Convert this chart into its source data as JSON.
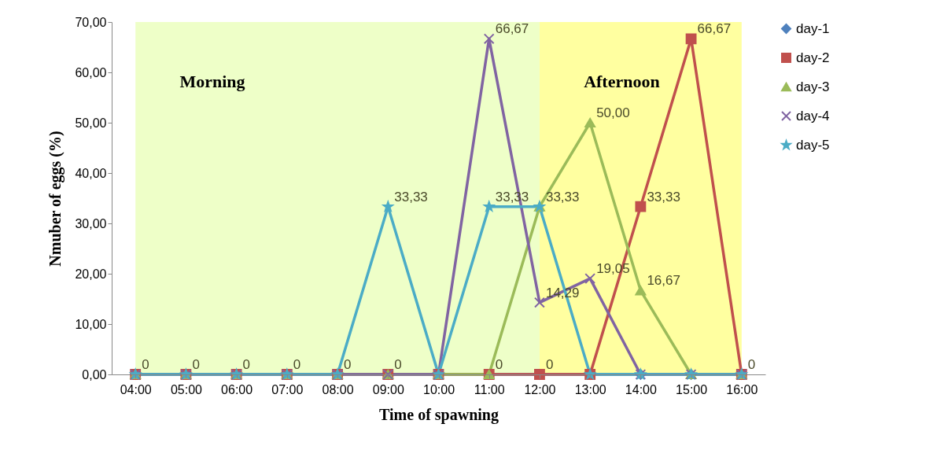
{
  "chart_data": {
    "type": "line",
    "xlabel": "Time of spawning",
    "ylabel": "Nmuber of eggs (%)",
    "categories": [
      "04:00",
      "05:00",
      "06:00",
      "07:00",
      "08:00",
      "09:00",
      "10:00",
      "11:00",
      "12:00",
      "13:00",
      "14:00",
      "15:00",
      "16:00"
    ],
    "ylim": [
      0,
      70
    ],
    "yticks": [
      {
        "value": 0,
        "label": "0,00"
      },
      {
        "value": 10,
        "label": "10,00"
      },
      {
        "value": 20,
        "label": "20,00"
      },
      {
        "value": 30,
        "label": "30,00"
      },
      {
        "value": 40,
        "label": "40,00"
      },
      {
        "value": 50,
        "label": "50,00"
      },
      {
        "value": 60,
        "label": "60,00"
      },
      {
        "value": 70,
        "label": "70,00"
      }
    ],
    "grid": false,
    "legend": "right",
    "bands": [
      {
        "axis": "x",
        "from": "04:00",
        "to": "12:00",
        "label": "Morning",
        "color": "#eeffc8"
      },
      {
        "axis": "x",
        "from": "12:00",
        "to": "16:00",
        "label": "Afternoon",
        "color": "#ffffa0"
      }
    ],
    "series": [
      {
        "name": "day-1",
        "color": "#4f81bd",
        "marker": "diamond",
        "values": [
          0,
          0,
          0,
          0,
          0,
          0,
          0,
          0,
          0,
          0,
          0,
          0,
          0
        ],
        "value_labels": [
          "0",
          "0",
          "0",
          "0",
          "0",
          "0",
          null,
          "0",
          "0",
          null,
          null,
          null,
          null
        ]
      },
      {
        "name": "day-2",
        "color": "#c0504d",
        "marker": "square",
        "values": [
          0,
          0,
          0,
          0,
          0,
          0,
          0,
          0,
          0,
          0,
          33.33,
          66.67,
          0
        ],
        "value_labels": [
          null,
          null,
          null,
          null,
          null,
          null,
          null,
          null,
          null,
          null,
          "33,33",
          "66,67",
          "0"
        ]
      },
      {
        "name": "day-3",
        "color": "#9bbb59",
        "marker": "triangle",
        "values": [
          0,
          0,
          0,
          0,
          0,
          0,
          0,
          0,
          33.33,
          50,
          16.67,
          0,
          0
        ],
        "value_labels": [
          null,
          null,
          null,
          null,
          null,
          null,
          null,
          null,
          "33,33",
          "50,00",
          "16,67",
          null,
          null
        ]
      },
      {
        "name": "day-4",
        "color": "#8064a2",
        "marker": "cross",
        "values": [
          0,
          0,
          0,
          0,
          0,
          0,
          0,
          66.67,
          14.29,
          19.05,
          0,
          0,
          0
        ],
        "value_labels": [
          null,
          null,
          null,
          null,
          null,
          null,
          null,
          "66,67",
          "14,29",
          "19,05",
          null,
          null,
          null
        ]
      },
      {
        "name": "day-5",
        "color": "#4bacc6",
        "marker": "star",
        "values": [
          0,
          0,
          0,
          0,
          0,
          33.33,
          0,
          33.33,
          33.33,
          0,
          0,
          0,
          0
        ],
        "value_labels": [
          null,
          null,
          null,
          null,
          null,
          "33,33",
          null,
          "33,33",
          null,
          null,
          null,
          null,
          null
        ]
      }
    ]
  }
}
